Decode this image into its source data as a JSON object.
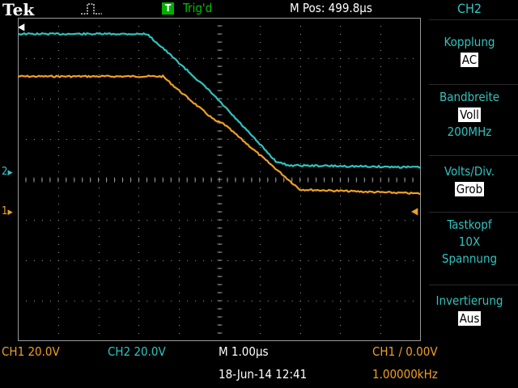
{
  "header": {
    "brand": "Tek",
    "trigger_badge": "T",
    "trigger_status": "Trig'd",
    "horizontal_position": "M Pos: 499.8µs"
  },
  "side_menu": {
    "channel": "CH2",
    "items": [
      {
        "label": "Kopplung",
        "value": "AC"
      },
      {
        "label": "Bandbreite",
        "value": "Voll",
        "extra": "200MHz"
      },
      {
        "label": "Volts/Div.",
        "value": "Grob"
      },
      {
        "label": "Tastkopf",
        "line2": "10X",
        "line3": "Spannung"
      },
      {
        "label": "Invertierung",
        "value": "Aus"
      }
    ]
  },
  "markers": {
    "ch1": "1",
    "ch2": "2"
  },
  "status_bar": {
    "ch1_scale": "CH1  20.0V",
    "ch2_scale": "CH2  20.0V",
    "timebase": "M 1.00µs",
    "trigger": "CH1 ∕ 0.00V",
    "date": "18-Jun-14 12:41",
    "frequency": "1.00000kHz"
  },
  "colors": {
    "ch1": "#f0a020",
    "ch2": "#2ec4c0",
    "grid": "#9a9a9a"
  },
  "chart_data": {
    "type": "line",
    "xlabel": "",
    "ylabel": "",
    "x_divisions": 10,
    "y_divisions": 8,
    "xlim": [
      0,
      10
    ],
    "ylim": [
      -4,
      4
    ],
    "series": [
      {
        "name": "CH1",
        "x": [
          0,
          3.6,
          4.0,
          4.9,
          5.1,
          7.0,
          10
        ],
        "y": [
          2.55,
          2.55,
          2.2,
          1.45,
          1.38,
          -0.25,
          -0.35
        ]
      },
      {
        "name": "CH2",
        "x": [
          0,
          3.2,
          3.6,
          4.8,
          6.4,
          6.7,
          10
        ],
        "y": [
          3.6,
          3.6,
          3.25,
          2.15,
          0.45,
          0.35,
          0.3
        ]
      }
    ]
  }
}
